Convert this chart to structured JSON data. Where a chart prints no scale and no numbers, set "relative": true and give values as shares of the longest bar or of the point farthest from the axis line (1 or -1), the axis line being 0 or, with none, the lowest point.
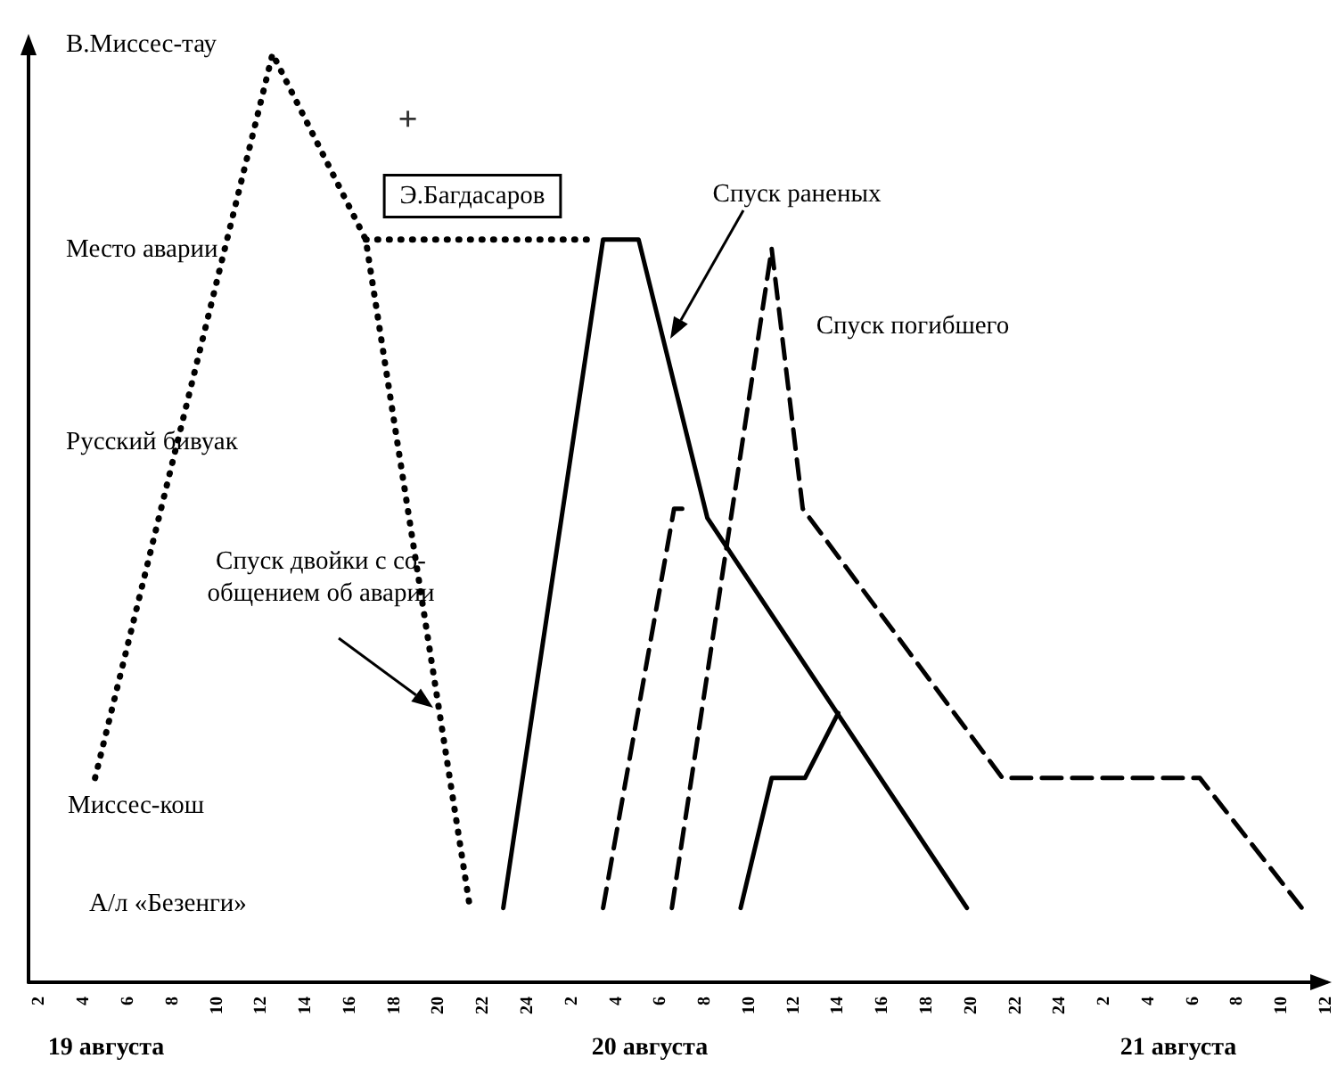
{
  "chart_data": {
    "type": "line",
    "relative": true,
    "xlim": [
      "--08-19T01:30",
      "--08-21T12:00"
    ],
    "xticks": [
      {
        "value": "--08-19T02:00",
        "label": "2"
      },
      {
        "value": "--08-19T04:00",
        "label": "4"
      },
      {
        "value": "--08-19T06:00",
        "label": "6"
      },
      {
        "value": "--08-19T08:00",
        "label": "8"
      },
      {
        "value": "--08-19T10:00",
        "label": "10"
      },
      {
        "value": "--08-19T12:00",
        "label": "12"
      },
      {
        "value": "--08-19T14:00",
        "label": "14"
      },
      {
        "value": "--08-19T16:00",
        "label": "16"
      },
      {
        "value": "--08-19T18:00",
        "label": "18"
      },
      {
        "value": "--08-19T20:00",
        "label": "20"
      },
      {
        "value": "--08-19T22:00",
        "label": "22"
      },
      {
        "value": "--08-20T00:00",
        "label": "24"
      },
      {
        "value": "--08-20T02:00",
        "label": "2"
      },
      {
        "value": "--08-20T04:00",
        "label": "4"
      },
      {
        "value": "--08-20T06:00",
        "label": "6"
      },
      {
        "value": "--08-20T08:00",
        "label": "8"
      },
      {
        "value": "--08-20T10:00",
        "label": "10"
      },
      {
        "value": "--08-20T12:00",
        "label": "12"
      },
      {
        "value": "--08-20T14:00",
        "label": "14"
      },
      {
        "value": "--08-20T16:00",
        "label": "16"
      },
      {
        "value": "--08-20T18:00",
        "label": "18"
      },
      {
        "value": "--08-20T20:00",
        "label": "20"
      },
      {
        "value": "--08-20T22:00",
        "label": "22"
      },
      {
        "value": "--08-21T00:00",
        "label": "24"
      },
      {
        "value": "--08-21T02:00",
        "label": "2"
      },
      {
        "value": "--08-21T04:00",
        "label": "4"
      },
      {
        "value": "--08-21T06:00",
        "label": "6"
      },
      {
        "value": "--08-21T08:00",
        "label": "8"
      },
      {
        "value": "--08-21T10:00",
        "label": "10"
      },
      {
        "value": "--08-21T12:00",
        "label": "12"
      }
    ],
    "x2lim": [
      "--08-19T01:30",
      "--08-21T12:00"
    ],
    "x2ticks": [
      {
        "value": "--08-19T05:00",
        "label": "19 августа"
      },
      {
        "value": "--08-20T05:30",
        "label": "20 августа"
      },
      {
        "value": "--08-21T05:20",
        "label": "21 августа"
      }
    ],
    "grid": false,
    "marker": "none",
    "series": [
      {
        "x": [
          "--08-19T04:30",
          "--08-19T12:30",
          "--08-19T16:42",
          "--08-19T21:24"
        ],
        "values": [
          0.22,
          1,
          0.8,
          0.08
        ],
        "color": "#000000",
        "line_style": "dotted"
      },
      {
        "x": [
          "--08-19T16:42",
          "--08-20T03:00"
        ],
        "values": [
          0.8,
          0.8
        ],
        "color": "#000000",
        "line_style": "dotted"
      },
      {
        "x": [
          "--08-19T22:54",
          "--08-20T03:24",
          "--08-20T05:00",
          "--08-20T08:06",
          "--08-20T19:48"
        ],
        "values": [
          0.08,
          0.8,
          0.8,
          0.5,
          0.08
        ],
        "color": "#000000",
        "line_style": "solid"
      },
      {
        "x": [
          "--08-20T03:24",
          "--08-20T06:36",
          "--08-20T07:18"
        ],
        "values": [
          0.08,
          0.51,
          0.51
        ],
        "color": "#000000",
        "line_style": "dashed"
      },
      {
        "x": [
          "--08-20T06:30",
          "--08-20T11:00",
          "--08-20T12:24",
          "--08-20T21:24",
          "--08-21T06:18",
          "--08-21T10:54"
        ],
        "values": [
          0.08,
          0.79,
          0.51,
          0.22,
          0.22,
          0.08
        ],
        "color": "#000000",
        "line_style": "dashed"
      },
      {
        "x": [
          "--08-20T09:36",
          "--08-20T11:00",
          "--08-20T12:30",
          "--08-20T14:00"
        ],
        "values": [
          0.08,
          0.22,
          0.22,
          0.29
        ],
        "color": "#000000",
        "line_style": "solid"
      },
      {
        "type": "scatter",
        "x": [
          "--08-19T18:36"
        ],
        "values": [
          0.93
        ],
        "color": "#000000",
        "marker": "cross"
      }
    ],
    "annotations": [
      "В.Миссес-тау",
      "Место аварии",
      "Русский бивуак",
      "Миссес-кош",
      "А/л «Безенги»",
      "Э.Багдасаров",
      "Спуск раненых",
      "Спуск погибшего",
      "Спуск двойки с со-\nобщением об аварии"
    ]
  }
}
